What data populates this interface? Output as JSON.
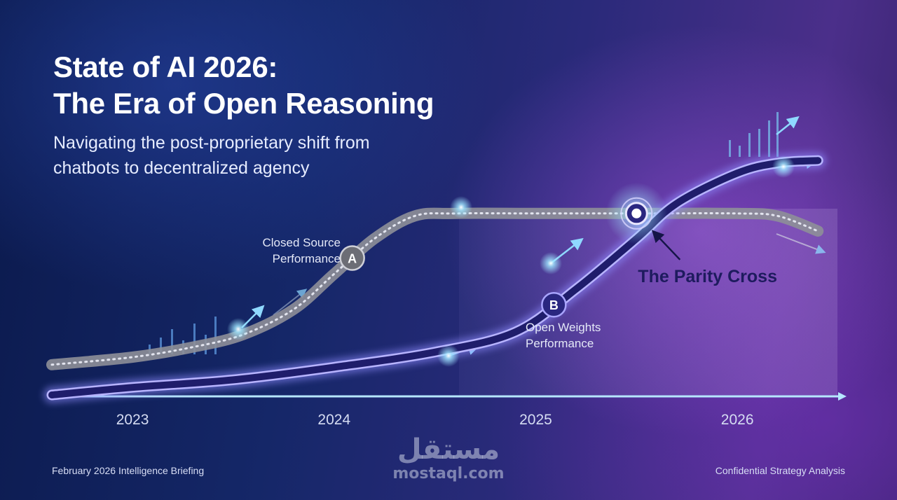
{
  "title_line1": "State of AI 2026:",
  "title_line2": "The Era of Open Reasoning",
  "subtitle_line1": "Navigating the post-proprietary shift from",
  "subtitle_line2": "chatbots to decentralized agency",
  "footer_left": "February 2026 Intelligence Briefing",
  "footer_right": "Confidential Strategy Analysis",
  "watermark": {
    "arabic": "مستقل",
    "latin": "mostaql.com"
  },
  "colors": {
    "closed_line": "#8e8f98",
    "open_line": "#1f1d6b",
    "open_glow": "#8f8cff",
    "accent_cyan": "#5fd3f3",
    "parity_text": "#1e1b5e"
  },
  "chart_data": {
    "type": "line",
    "x_ticks": [
      "2023",
      "2024",
      "2025",
      "2026"
    ],
    "xlim": [
      2022.6,
      2026.5
    ],
    "ylim": [
      0,
      100
    ],
    "series": [
      {
        "name": "Closed Source Performance",
        "x": [
          2022.6,
          2023.0,
          2023.3,
          2023.55,
          2023.8,
          2024.0,
          2024.2,
          2024.4,
          2024.6,
          2025.0,
          2025.5,
          2026.0,
          2026.2,
          2026.4
        ],
        "y": [
          12,
          15,
          19,
          24,
          34,
          48,
          62,
          71,
          72,
          72,
          72,
          72,
          71,
          65
        ]
      },
      {
        "name": "Open Weights Performance",
        "x": [
          2022.6,
          2023.0,
          2023.5,
          2024.0,
          2024.5,
          2024.9,
          2025.2,
          2025.5,
          2025.7,
          2026.0,
          2026.2,
          2026.4
        ],
        "y": [
          0,
          3,
          6,
          11,
          17,
          25,
          42,
          62,
          76,
          88,
          92,
          93
        ]
      }
    ],
    "markers": [
      {
        "label": "A",
        "series": "Closed Source Performance",
        "x": 2024.09
      },
      {
        "label": "B",
        "series": "Open Weights Performance",
        "x": 2025.09
      }
    ],
    "annotation": {
      "text": "The Parity Cross",
      "x": 2025.5,
      "y": 72
    }
  }
}
